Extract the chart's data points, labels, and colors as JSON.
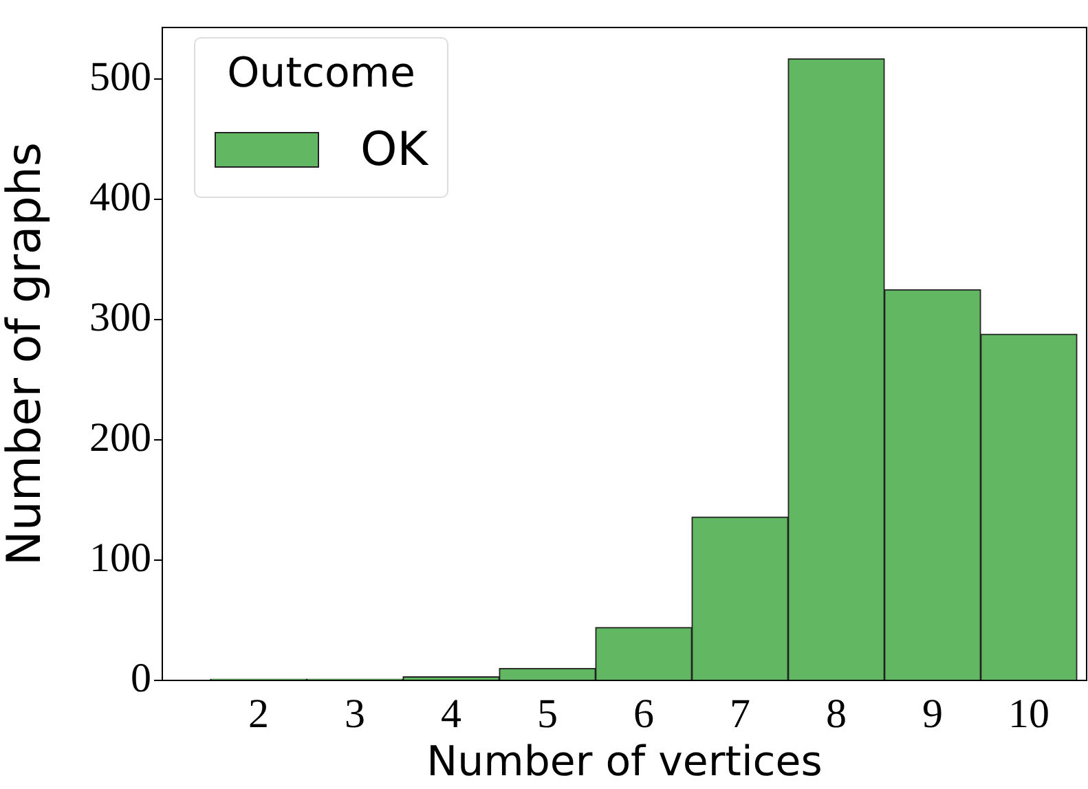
{
  "chart_data": {
    "type": "histogram",
    "xlabel": "Number of vertices",
    "ylabel": "Number of graphs",
    "legend_title": "Outcome",
    "legend": "top left",
    "bins": [
      1.5,
      2.5,
      3.5,
      4.5,
      5.5,
      6.5,
      7.5,
      8.5,
      9.5,
      10.5
    ],
    "series": [
      {
        "name": "OK",
        "color": "#62b862",
        "values": [
          1,
          1,
          3,
          10,
          44,
          136,
          517,
          325,
          288
        ]
      }
    ],
    "xlim": [
      1,
      10.6
    ],
    "xticks": [
      2,
      3,
      4,
      5,
      6,
      7,
      8,
      9,
      10
    ],
    "ylim": [
      0,
      543
    ],
    "yticks": [
      0,
      100,
      200,
      300,
      400,
      500
    ],
    "grid": false
  }
}
